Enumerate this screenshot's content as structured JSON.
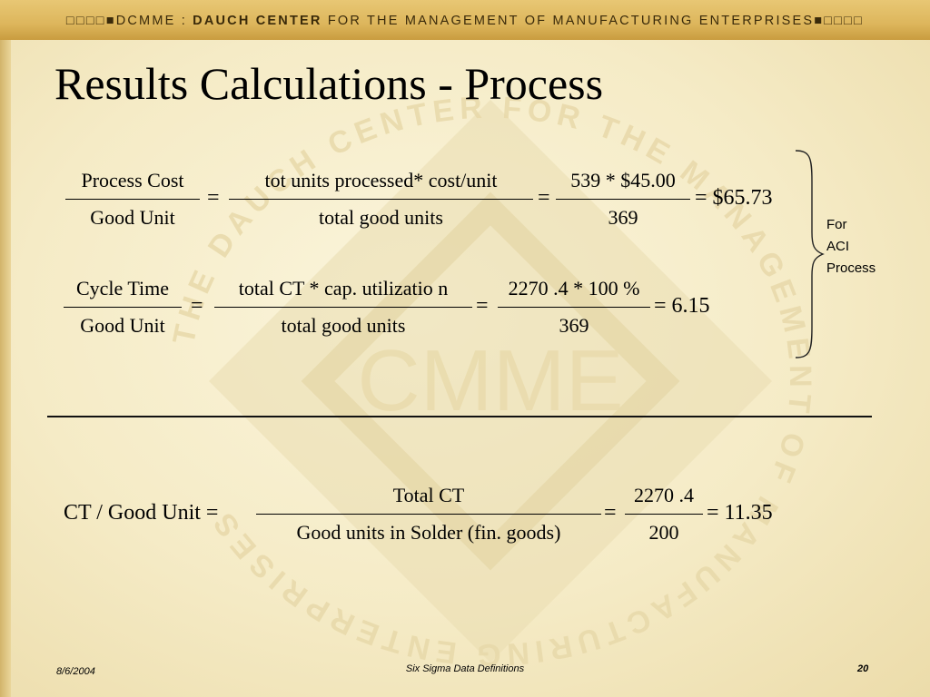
{
  "header": {
    "prefix": "DCMME :",
    "brand": "DAUCH CENTER",
    "rest": "FOR THE MANAGEMENT OF MANUFACTURING ENTERPRISES"
  },
  "watermark": {
    "logo_text": "CMME",
    "ring_text": "THE DAUCH CENTER FOR THE MANAGEMENT OF MANUFACTURING ENTERPRISES"
  },
  "title": "Results Calculations - Process",
  "eq1": {
    "lhs_num": "Process Cost",
    "lhs_den": "Good Unit",
    "eq_a": "=",
    "mid_num": "tot units processed* cost/unit",
    "mid_den": "total good units",
    "eq_b": "=",
    "val_num": "539 * $45.00",
    "val_den": "369",
    "result": "= $65.73"
  },
  "eq2": {
    "lhs_num": "Cycle Time",
    "lhs_den": "Good Unit",
    "eq_a": "=",
    "mid_num": "total CT * cap. utilizatio n",
    "mid_den": "total good units",
    "eq_b": "=",
    "val_num": "2270 .4 * 100 %",
    "val_den": "369",
    "result": "= 6.15"
  },
  "brace_label": [
    "For",
    "ACI",
    "Process"
  ],
  "eq3": {
    "lhs": "CT / Good Unit  =",
    "mid_num": "Total CT",
    "mid_den": "Good units in Solder (fin. goods)",
    "eq_b": "=",
    "val_num": "2270 .4",
    "val_den": "200",
    "result": "= 11.35"
  },
  "footer": {
    "date": "8/6/2004",
    "center": "Six Sigma Data Definitions",
    "page": "20"
  }
}
